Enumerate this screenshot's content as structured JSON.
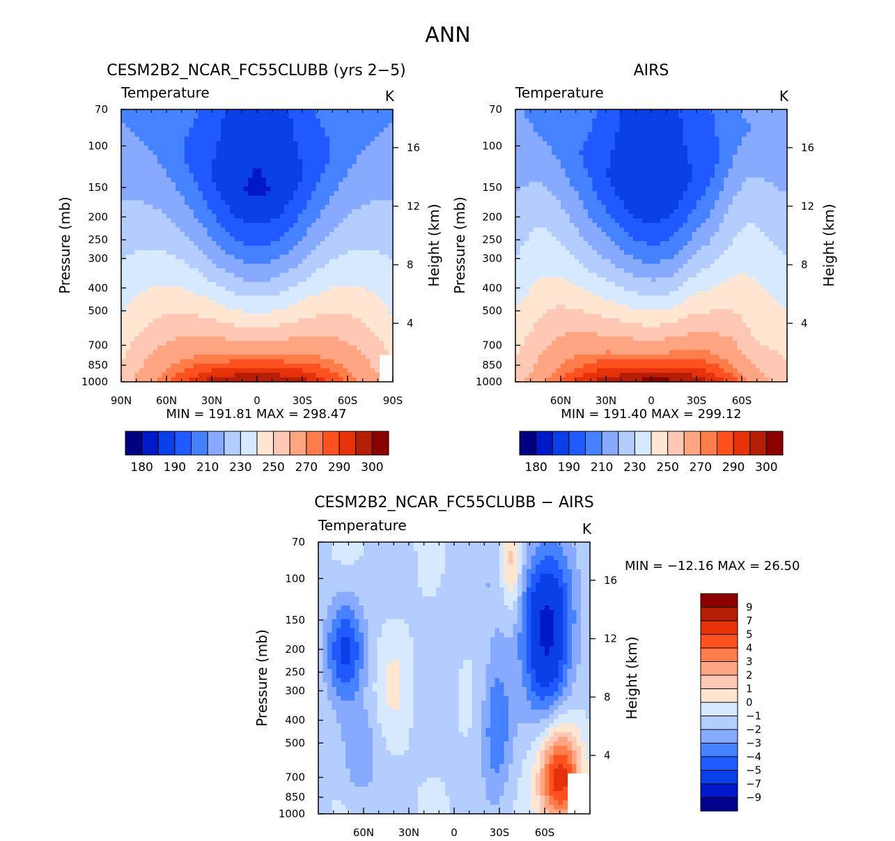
{
  "figure": {
    "title": "ANN"
  },
  "colors": {
    "abs": [
      "#000080",
      "#0019c8",
      "#0a3ee6",
      "#1e5aff",
      "#4682ff",
      "#87aaff",
      "#b4cdff",
      "#d7e9ff",
      "#ffe6d2",
      "#ffc8b4",
      "#ffa582",
      "#ff7d4b",
      "#ff5020",
      "#e6320a",
      "#b41e05",
      "#8c0000"
    ],
    "diff": [
      "#00008c",
      "#0019c8",
      "#0a3ee6",
      "#1e5aff",
      "#4682ff",
      "#87aaff",
      "#b4cdff",
      "#d7e9ff",
      "#ffe6d2",
      "#ffc8b4",
      "#ffa582",
      "#ff7d4b",
      "#ff5020",
      "#e6320a",
      "#b41e05",
      "#8c0000"
    ]
  },
  "chart_data": [
    {
      "type": "heatmap",
      "title": "CESM2B2_NCAR_FC55CLUBB (yrs 2−5)",
      "subtitle_left": "Temperature",
      "subtitle_right": "K",
      "ylabel": "Pressure (mb)",
      "ylabel_right": "Height (km)",
      "x_ticks": [
        "90N",
        "60N",
        "30N",
        "0",
        "30S",
        "60S",
        "90S"
      ],
      "y_ticks": [
        "70",
        "100",
        "150",
        "200",
        "250",
        "300",
        "400",
        "500",
        "700",
        "850",
        "1000"
      ],
      "y_right_ticks": [
        "4",
        "8",
        "12",
        "16"
      ],
      "xlim": [
        90,
        -90
      ],
      "ylim": [
        1000,
        70
      ],
      "stats": {
        "min": "191.81",
        "max": "298.47"
      },
      "colorbar": {
        "orientation": "horizontal",
        "labels": [
          "180",
          "190",
          "210",
          "230",
          "250",
          "270",
          "290",
          "300"
        ]
      },
      "field": {
        "kind": "model",
        "min": 191.81,
        "max": 298.47
      }
    },
    {
      "type": "heatmap",
      "title": "AIRS",
      "subtitle_left": "Temperature",
      "subtitle_right": "K",
      "ylabel": "Pressure (mb)",
      "ylabel_right": "Height (km)",
      "x_ticks": [
        "60N",
        "30N",
        "0",
        "30S",
        "60S"
      ],
      "y_ticks": [
        "70",
        "100",
        "150",
        "200",
        "250",
        "300",
        "400",
        "500",
        "700",
        "850",
        "1000"
      ],
      "y_right_ticks": [
        "4",
        "8",
        "12",
        "16"
      ],
      "xlim": [
        90,
        -90
      ],
      "ylim": [
        1000,
        70
      ],
      "stats": {
        "min": "191.40",
        "max": "299.12"
      },
      "colorbar": {
        "orientation": "horizontal",
        "labels": [
          "180",
          "190",
          "210",
          "230",
          "250",
          "270",
          "290",
          "300"
        ]
      },
      "field": {
        "kind": "obs",
        "min": 191.4,
        "max": 299.12
      }
    },
    {
      "type": "heatmap",
      "title": "CESM2B2_NCAR_FC55CLUBB − AIRS",
      "subtitle_left": "Temperature",
      "subtitle_right": "K",
      "ylabel": "Pressure (mb)",
      "ylabel_right": "Height (km)",
      "x_ticks": [
        "60N",
        "30N",
        "0",
        "30S",
        "60S"
      ],
      "y_ticks": [
        "70",
        "100",
        "150",
        "200",
        "250",
        "300",
        "400",
        "500",
        "700",
        "850",
        "1000"
      ],
      "y_right_ticks": [
        "4",
        "8",
        "12",
        "16"
      ],
      "xlim": [
        90,
        -90
      ],
      "ylim": [
        1000,
        70
      ],
      "stats": {
        "min": "−12.16",
        "max": "26.50"
      },
      "colorbar": {
        "orientation": "vertical",
        "labels": [
          "9",
          "7",
          "5",
          "4",
          "3",
          "2",
          "1",
          "0",
          "−1",
          "−2",
          "−3",
          "−4",
          "−5",
          "−7",
          "−9"
        ]
      },
      "field": {
        "kind": "diff",
        "min": -12.16,
        "max": 26.5
      }
    }
  ]
}
